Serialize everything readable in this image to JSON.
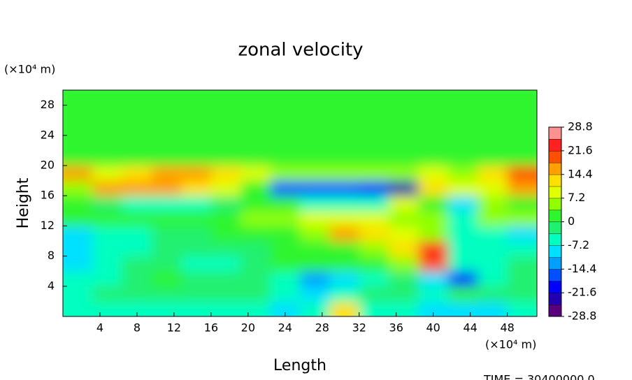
{
  "chart_data": {
    "type": "heatmap",
    "title": "zonal velocity",
    "xlabel": "Length",
    "ylabel": "Height",
    "xunit": "(×10⁴ m)",
    "yunit": "(×10⁴ m)",
    "time_label": "TIME = 30400000.0",
    "xlim": [
      0,
      51.2
    ],
    "ylim": [
      0,
      30
    ],
    "xticks": [
      4,
      8,
      12,
      16,
      20,
      24,
      28,
      32,
      36,
      40,
      44,
      48
    ],
    "yticks": [
      4,
      8,
      12,
      16,
      20,
      24,
      28
    ],
    "x": [
      1.6,
      4.8,
      8,
      11.2,
      14.4,
      17.6,
      20.8,
      24,
      27.2,
      30.4,
      33.6,
      36.8,
      40,
      43.2,
      46.4,
      49.6
    ],
    "y": [
      1,
      3,
      5,
      7,
      9,
      11,
      13,
      15,
      17,
      19,
      21,
      23,
      25,
      27,
      29
    ],
    "values": [
      [
        -6,
        -6,
        -4,
        -6,
        -6,
        -4,
        -4,
        -8,
        -6,
        12,
        -4,
        -6,
        -8,
        -8,
        -10,
        -6
      ],
      [
        -6,
        -3,
        -2,
        -3,
        -3,
        -2,
        -2,
        -4,
        -8,
        -6,
        -3,
        -2,
        -4,
        2,
        -2,
        -3
      ],
      [
        -6,
        -4,
        -2,
        0,
        -2,
        -3,
        -2,
        -4,
        -14,
        -10,
        -4,
        -2,
        -8,
        -20,
        -4,
        -3
      ],
      [
        -8,
        -5,
        -3,
        -2,
        -4,
        -4,
        -2,
        0,
        0,
        2,
        2,
        4,
        20,
        -4,
        -6,
        -3
      ],
      [
        -10,
        -6,
        -4,
        -2,
        -2,
        -3,
        -3,
        0,
        0,
        2,
        4,
        12,
        22,
        -6,
        -6,
        -4
      ],
      [
        -8,
        -6,
        -4,
        -2,
        -2,
        0,
        0,
        2,
        6,
        16,
        12,
        10,
        6,
        -4,
        -6,
        -8
      ],
      [
        0,
        2,
        2,
        0,
        0,
        2,
        4,
        6,
        10,
        10,
        8,
        6,
        4,
        -6,
        6,
        4
      ],
      [
        2,
        -2,
        -5,
        -6,
        -5,
        -3,
        0,
        0,
        -4,
        -6,
        -5,
        10,
        0,
        -10,
        4,
        2
      ],
      [
        6,
        16,
        18,
        15,
        14,
        10,
        2,
        -15,
        -18,
        -16,
        -20,
        -22,
        12,
        8,
        10,
        16
      ],
      [
        18,
        10,
        14,
        16,
        15,
        14,
        8,
        5,
        5,
        6,
        5,
        6,
        10,
        7,
        12,
        20
      ],
      [
        0,
        0,
        0,
        0,
        0,
        0,
        0,
        0,
        0,
        0,
        0,
        0,
        0,
        0,
        0,
        0
      ],
      [
        0,
        0,
        0,
        0,
        0,
        0,
        0,
        0,
        0,
        0,
        0,
        0,
        0,
        0,
        0,
        0
      ],
      [
        0,
        0,
        0,
        0,
        0,
        0,
        0,
        0,
        0,
        0,
        0,
        0,
        0,
        0,
        0,
        0
      ],
      [
        0,
        0,
        0,
        0,
        0,
        0,
        0,
        0,
        0,
        0,
        0,
        0,
        0,
        0,
        0,
        0
      ],
      [
        0,
        0,
        0,
        0,
        0,
        0,
        0,
        0,
        0,
        0,
        0,
        0,
        0,
        0,
        0,
        0
      ]
    ],
    "colorbar": {
      "lim": [
        -28.8,
        28.8
      ],
      "ticks": [
        28.8,
        21.6,
        14.4,
        7.2,
        0,
        -7.2,
        -14.4,
        -21.6,
        -28.8
      ]
    },
    "colorscale": [
      "#5a007f",
      "#2200b0",
      "#0000ff",
      "#0050ff",
      "#00a0ff",
      "#00e0ff",
      "#00ffc0",
      "#20f070",
      "#2ef52e",
      "#90ff00",
      "#e0ff00",
      "#ffe000",
      "#ffa000",
      "#ff5000",
      "#ff2020",
      "#ff9090"
    ]
  }
}
